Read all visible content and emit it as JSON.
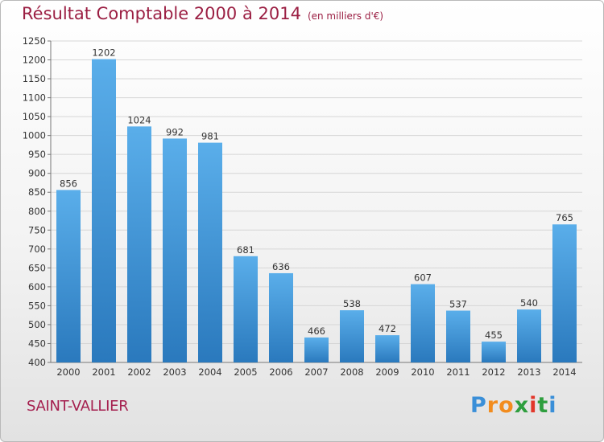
{
  "header": {
    "title": "Résultat Comptable 2000 à 2014",
    "subtitle": "(en milliers d'€)"
  },
  "commune": "SAINT-VALLIER",
  "logo": {
    "letters": [
      "P",
      "r",
      "o",
      "x",
      "i",
      "t",
      "i"
    ],
    "colors": [
      "#3a8fd8",
      "#f28c1e",
      "#f28c1e",
      "#2e9e3e",
      "#e2372b",
      "#2e9e3e",
      "#3a8fd8"
    ]
  },
  "chart_data": {
    "type": "bar",
    "title": "Résultat Comptable 2000 à 2014",
    "subtitle": "(en milliers d'€)",
    "categories": [
      "2000",
      "2001",
      "2002",
      "2003",
      "2004",
      "2005",
      "2006",
      "2007",
      "2008",
      "2009",
      "2010",
      "2011",
      "2012",
      "2013",
      "2014"
    ],
    "values": [
      856,
      1202,
      1024,
      992,
      981,
      681,
      636,
      466,
      538,
      472,
      607,
      537,
      455,
      540,
      765
    ],
    "ylim": [
      400,
      1250
    ],
    "yticks": [
      400,
      450,
      500,
      550,
      600,
      650,
      700,
      750,
      800,
      850,
      900,
      950,
      1000,
      1050,
      1100,
      1150,
      1200,
      1250
    ],
    "grid": true,
    "bar_color": "#4a9fe0",
    "data_labels": true
  }
}
